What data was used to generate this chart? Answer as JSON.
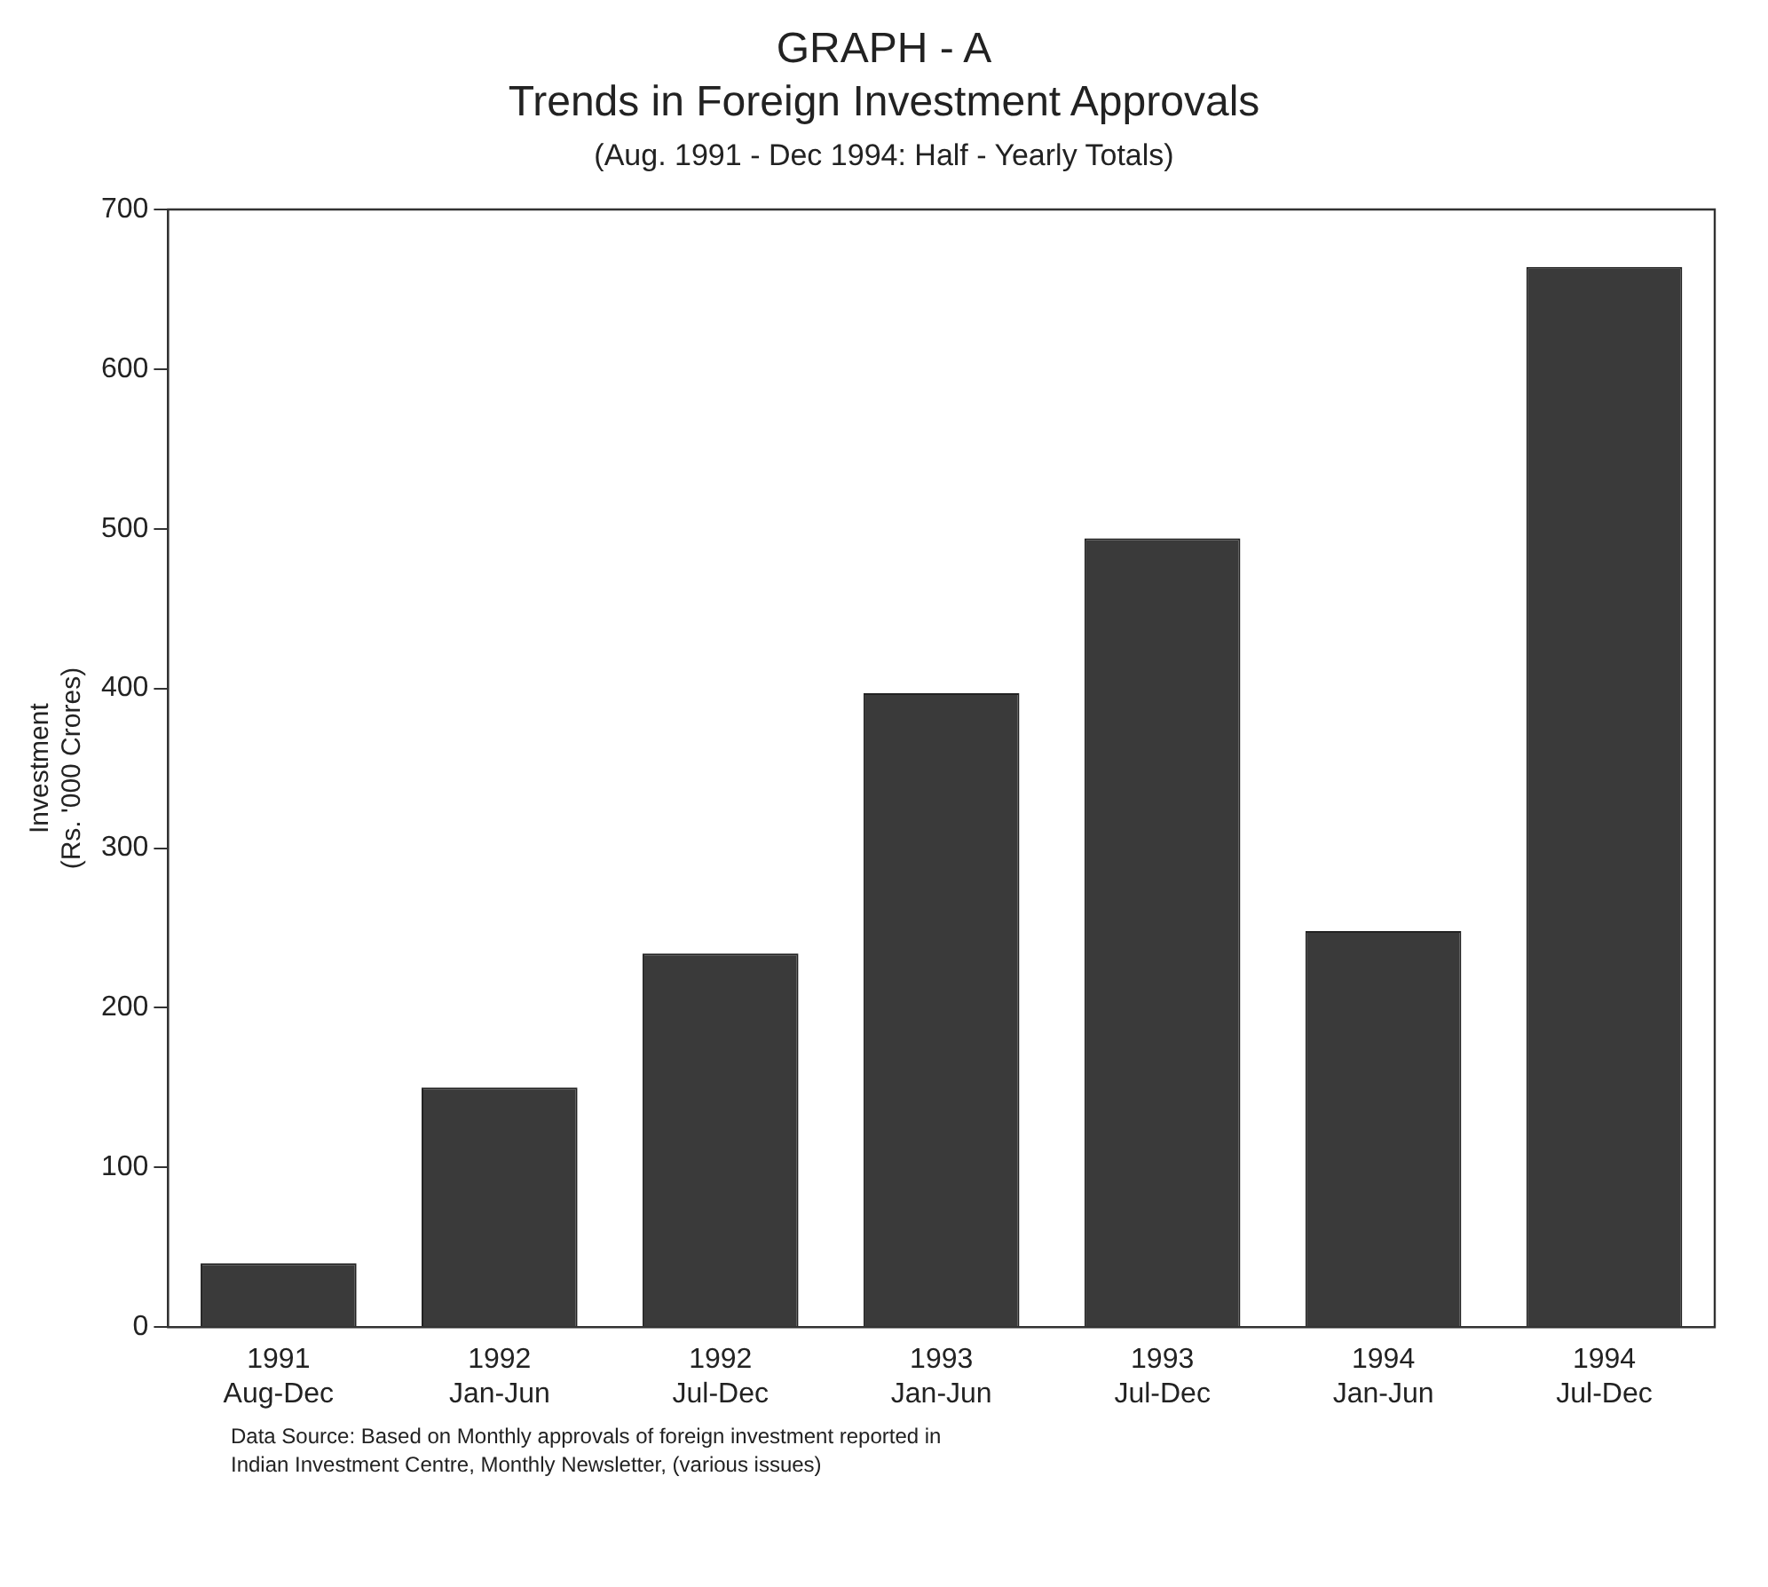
{
  "chart_data": {
    "type": "bar",
    "title": "GRAPH - A",
    "subtitle": "Trends in Foreign Investment Approvals",
    "ylabel": "Investment\n(Rs. '000 Crores)",
    "categories": [
      "1991\nAug-Dec",
      "1992\nJan-Jun",
      "1992\nJul-Dec",
      "1993\nJan-Jun",
      "1993\nJul-Dec",
      "1994\nJan-Jun",
      "1994\nJul-Dec"
    ],
    "values": [
      40,
      150,
      234,
      397,
      494,
      248,
      664
    ],
    "color": "#3a3a3a",
    "ylim": [
      0,
      700
    ],
    "yticks": [
      0,
      100,
      200,
      300,
      400,
      500,
      600,
      700
    ],
    "grid": false,
    "legend": false,
    "annotations": [
      "(Aug. 1991 - Dec 1994: Half - Yearly Totals)",
      "Data Source: Based on Monthly approvals of foreign investment reported in\nIndian Investment Centre, Monthly Newsletter, (various issues)"
    ]
  }
}
